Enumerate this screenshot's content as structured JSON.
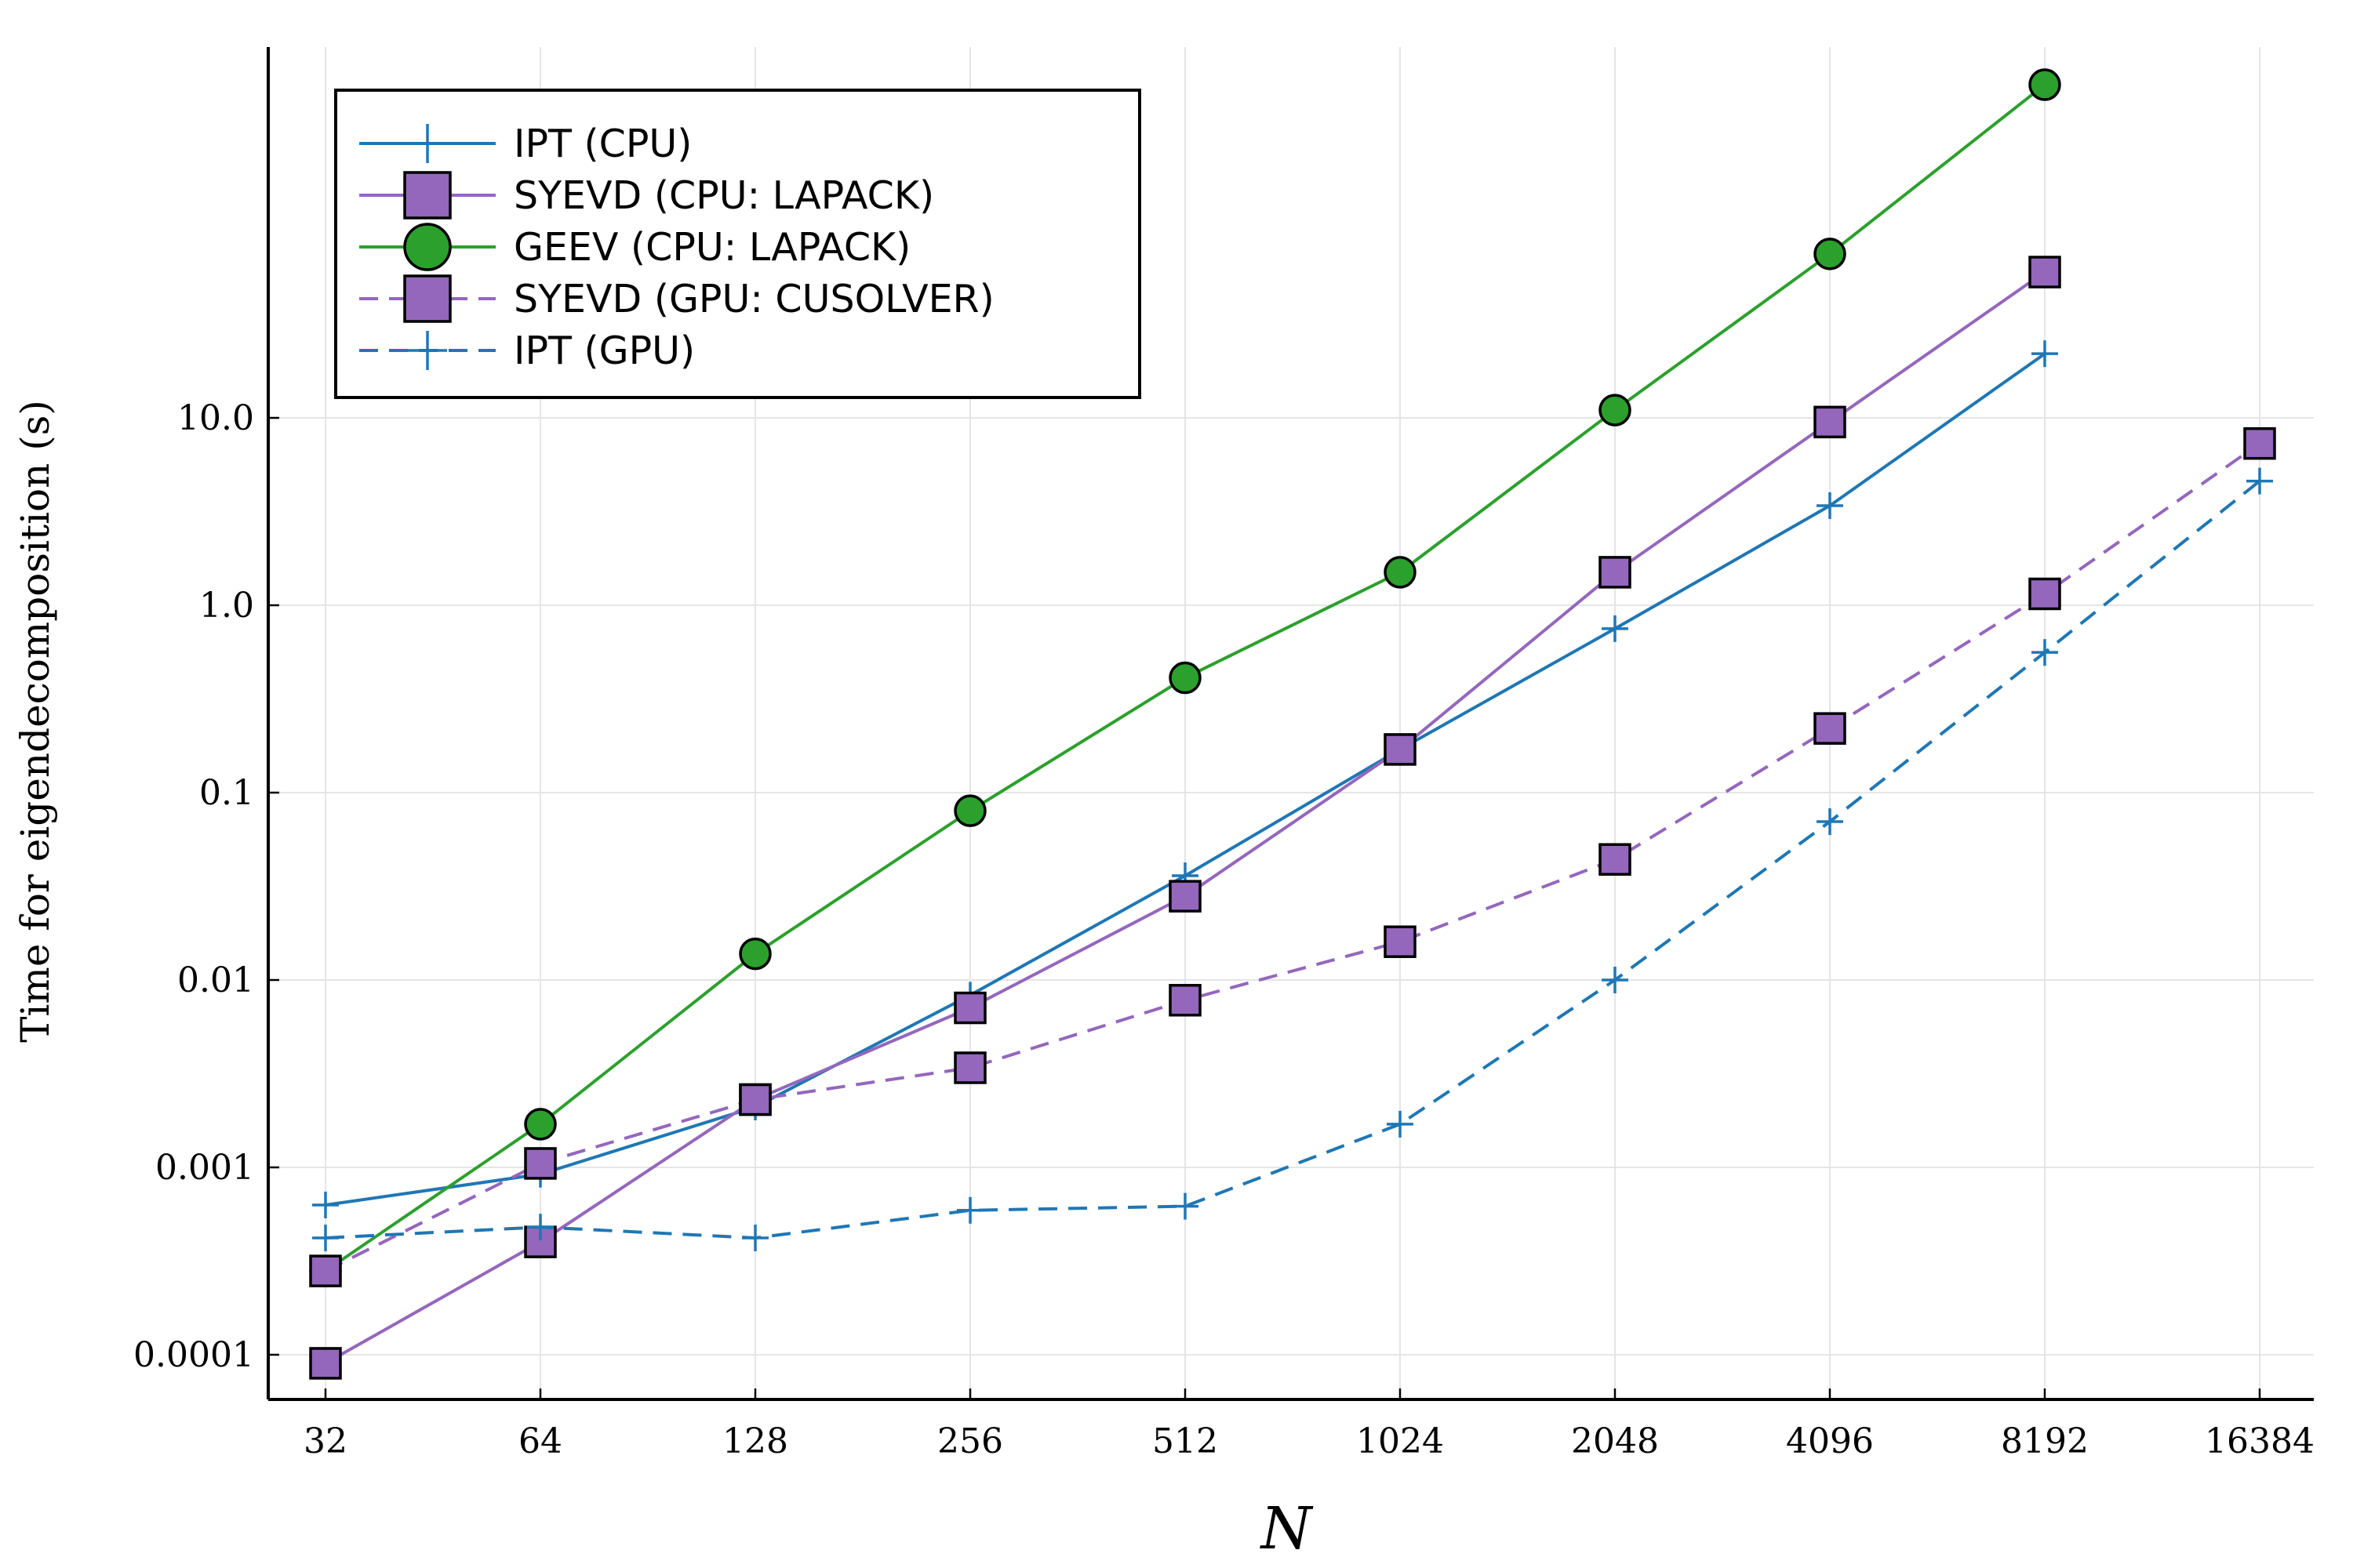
{
  "chart_data": {
    "type": "line",
    "title": "",
    "xlabel": "N",
    "ylabel": "Time for eigendecomposition (s)",
    "xscale": "log2",
    "yscale": "log10",
    "x_ticks": [
      "32",
      "64",
      "128",
      "256",
      "512",
      "1024",
      "2048",
      "4096",
      "8192",
      "16384"
    ],
    "y_ticks": [
      "0.0001",
      "0.001",
      "0.01",
      "0.1",
      "1.0",
      "10.0"
    ],
    "grid": true,
    "legend_position": "top-left",
    "series": [
      {
        "name": "IPT (CPU)",
        "color": "#1f77b4",
        "line": "solid",
        "marker": "plus",
        "points": [
          [
            32,
            0.00063
          ],
          [
            64,
            0.00092
          ],
          [
            128,
            0.0021
          ],
          [
            256,
            0.0083
          ],
          [
            512,
            0.036
          ],
          [
            1024,
            0.17
          ],
          [
            2048,
            0.75
          ],
          [
            4096,
            3.4
          ],
          [
            8192,
            22
          ]
        ]
      },
      {
        "name": "SYEVD (CPU: LAPACK)",
        "color": "#9467bd",
        "line": "solid",
        "marker": "square",
        "points": [
          [
            32,
            9e-05
          ],
          [
            64,
            0.0004
          ],
          [
            128,
            0.0023
          ],
          [
            256,
            0.0071
          ],
          [
            512,
            0.028
          ],
          [
            1024,
            0.17
          ],
          [
            2048,
            1.5
          ],
          [
            4096,
            9.5
          ],
          [
            8192,
            60
          ]
        ]
      },
      {
        "name": "GEEV (CPU: LAPACK)",
        "color": "#2ca02c",
        "line": "solid",
        "marker": "circle",
        "points": [
          [
            32,
            0.00028
          ],
          [
            64,
            0.0017
          ],
          [
            128,
            0.0138
          ],
          [
            256,
            0.08
          ],
          [
            512,
            0.41
          ],
          [
            1024,
            1.5
          ],
          [
            2048,
            11
          ],
          [
            4096,
            75
          ],
          [
            8192,
            600
          ]
        ]
      },
      {
        "name": "SYEVD (GPU: CUSOLVER)",
        "color": "#9467bd",
        "line": "dashed",
        "marker": "square",
        "points": [
          [
            32,
            0.00028
          ],
          [
            64,
            0.00105
          ],
          [
            128,
            0.0023
          ],
          [
            256,
            0.0034
          ],
          [
            512,
            0.0078
          ],
          [
            1024,
            0.016
          ],
          [
            2048,
            0.044
          ],
          [
            4096,
            0.22
          ],
          [
            8192,
            1.15
          ],
          [
            16384,
            7.3
          ]
        ]
      },
      {
        "name": "IPT (GPU)",
        "color": "#1f77b4",
        "line": "dashed",
        "marker": "plus",
        "points": [
          [
            32,
            0.00042
          ],
          [
            64,
            0.00048
          ],
          [
            128,
            0.00042
          ],
          [
            256,
            0.00059
          ],
          [
            512,
            0.00062
          ],
          [
            1024,
            0.0017
          ],
          [
            2048,
            0.01
          ],
          [
            4096,
            0.07
          ],
          [
            8192,
            0.56
          ],
          [
            16384,
            4.6
          ]
        ]
      }
    ]
  }
}
